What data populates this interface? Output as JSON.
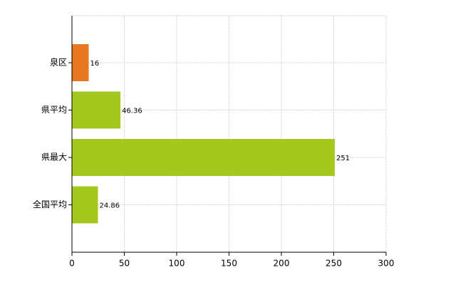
{
  "chart_data": {
    "type": "bar",
    "orientation": "horizontal",
    "categories": [
      "泉区",
      "県平均",
      "県最大",
      "全国平均"
    ],
    "values": [
      16,
      46.36,
      251,
      24.86
    ],
    "colors": [
      "#e87722",
      "#a4c81e",
      "#a4c81e",
      "#a4c81e"
    ],
    "xlim": [
      0,
      300
    ],
    "xticks": [
      0,
      50,
      100,
      150,
      200,
      250,
      300
    ],
    "grid": true
  }
}
